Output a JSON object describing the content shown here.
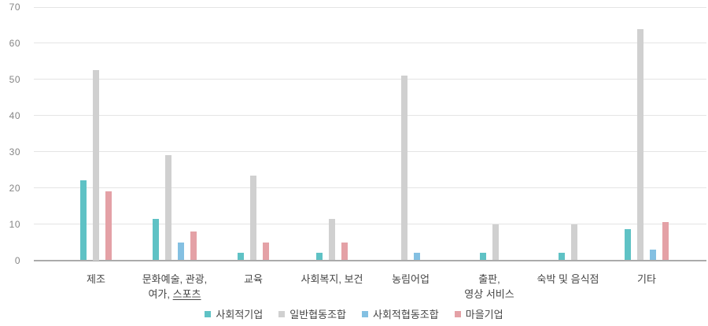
{
  "chart_data": {
    "type": "bar",
    "title": "",
    "xlabel": "",
    "ylabel": "",
    "ylim": [
      0,
      70
    ],
    "yticks": [
      0,
      10,
      20,
      30,
      40,
      50,
      60,
      70
    ],
    "grid": true,
    "legend_position": "bottom",
    "categories": [
      {
        "label": "제조"
      },
      {
        "label": "문화예술, 관광,\n여가, 스포츠",
        "underline": "스포츠"
      },
      {
        "label": "교육"
      },
      {
        "label": "사회복지, 보건"
      },
      {
        "label": "농림어업"
      },
      {
        "label": "출판,\n영상 서비스"
      },
      {
        "label": "숙박 및 음식점"
      },
      {
        "label": "기타"
      }
    ],
    "series": [
      {
        "name": "사회적기업",
        "color": "#5fc2c5",
        "values": [
          22,
          11.5,
          2,
          2,
          0,
          2,
          2,
          8.5
        ]
      },
      {
        "name": "일반협동조합",
        "color": "#d0d0d0",
        "values": [
          52.5,
          29,
          23.5,
          11.5,
          51,
          10,
          10,
          64
        ]
      },
      {
        "name": "사회적협동조합",
        "color": "#84c0e2",
        "values": [
          0,
          5,
          0,
          0,
          2,
          0,
          0,
          3
        ]
      },
      {
        "name": "마을기업",
        "color": "#e4a1a6",
        "values": [
          19,
          8,
          5,
          5,
          0,
          0,
          0,
          10.5
        ]
      }
    ]
  },
  "colors": {
    "background": "#ffffff",
    "gridline": "#e4e4e4",
    "axis_line": "#ababab",
    "tick_label": "#858585",
    "category_label": "#454545"
  }
}
